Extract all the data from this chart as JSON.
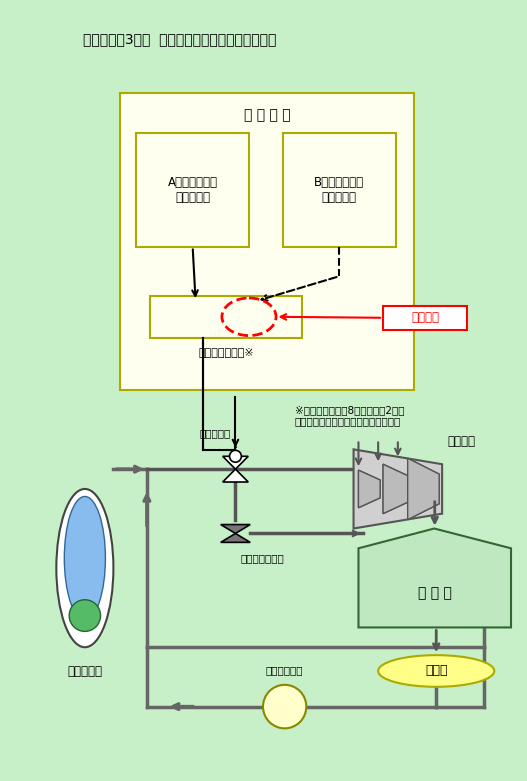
{
  "title": "伊方発電所3号機  主蒸気ダンプ弁制御回路概略図",
  "bg_color": "#c8f0c8",
  "fig_bg": "#c8f0c8",
  "control_device_label": "制 御 装 置",
  "card_A_label": "A系演算カード\n（常用系）",
  "card_B_label": "B系演算カード\n（待機系）",
  "output_card_label": "制御出力カード※",
  "note_text": "※主蒸気ダンプ弁8台のうち、2台が\n当該カードによって制御されている。",
  "to該_label": "当該箇所",
  "label_shujouki_stop": "主蒸気止弁",
  "label_dump": "主蒸気ダンプ弁",
  "label_turbine": "タービン",
  "label_condenser": "復 水 器",
  "label_deaerator": "脱気器",
  "label_sg": "蒸気発生器",
  "label_pump": "主給水ポンプ"
}
